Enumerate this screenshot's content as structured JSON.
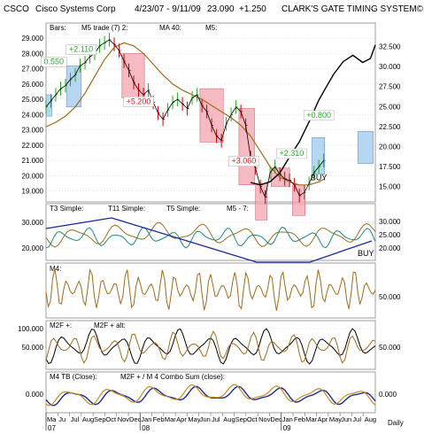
{
  "header": {
    "symbol": "CSCO",
    "company": "Cisco Systems Corp",
    "range": "4/23/07 - 9/11/09",
    "last": "23.090",
    "change": "+1.250",
    "system": "CLARK'S GATE TIMING SYSTEM©"
  },
  "colors": {
    "price": "#000000",
    "up_bar": "#22aa22",
    "down_bar": "#cc0000",
    "ma40": "#a06a1a",
    "buy_zone": "#9ec8ec",
    "sell_zone": "#f2a3ad",
    "teal": "#1a8a7a",
    "blue": "#1a2a9a",
    "arrow_green": "#22aa22",
    "arrow_red": "#cc2222"
  },
  "chart_data": [
    {
      "type": "line",
      "panel": "price",
      "legend": [
        "Bars:",
        "M5 trade (7) 2:",
        "MA 40:",
        "M5:"
      ],
      "left_ticks": [
        "29.000",
        "28.000",
        "27.000",
        "26.000",
        "25.000",
        "24.000",
        "23.000",
        "22.000",
        "21.000",
        "20.000",
        "19.000"
      ],
      "right_ticks": [
        "32.500",
        "30.000",
        "27.500",
        "25.000",
        "22.500",
        "20.000",
        "17.500",
        "15.000"
      ],
      "ylim_left": [
        18.4,
        29.3
      ],
      "ylim_right": [
        13.3,
        34.1
      ],
      "x_months": 28.6,
      "annotations": [
        {
          "text": "+2.110",
          "x": 3.6,
          "y": 28.1,
          "color": "#22aa22"
        },
        {
          "text": "0.550",
          "x": 0.8,
          "y": 27.3,
          "color": "#22aa22"
        },
        {
          "text": "+5.200",
          "x": 9.5,
          "y": 24.7,
          "color": "#cc2222"
        },
        {
          "text": "+3.060",
          "x": 20.3,
          "y": 20.8,
          "color": "#cc2222"
        },
        {
          "text": "+2.310",
          "x": 25.2,
          "y": 21.3,
          "color": "#22aa22"
        },
        {
          "text": "+0.800",
          "x": 28.0,
          "y": 23.8,
          "color": "#22aa22"
        },
        {
          "text": "BUY",
          "x": 28.0,
          "y": 19.7,
          "color": "#000000"
        }
      ],
      "zones": [
        {
          "kind": "buy",
          "x0": 0.0,
          "x1": 0.6,
          "y0": 23.9,
          "y1": 25.3
        },
        {
          "kind": "buy",
          "x0": 2.1,
          "x1": 3.6,
          "y0": 24.5,
          "y1": 27.2
        },
        {
          "kind": "sell",
          "x0": 7.8,
          "x1": 10.1,
          "y0": 25.1,
          "y1": 28.0
        },
        {
          "kind": "sell",
          "x0": 15.8,
          "x1": 18.2,
          "y0": 22.2,
          "y1": 25.7
        },
        {
          "kind": "sell",
          "x0": 19.8,
          "x1": 21.4,
          "y0": 19.4,
          "y1": 24.4
        },
        {
          "kind": "sell",
          "x0": 21.5,
          "x1": 22.7,
          "y0": 17.1,
          "y1": 19.5
        },
        {
          "kind": "sell",
          "x0": 23.1,
          "x1": 25.0,
          "y0": 19.3,
          "y1": 20.5
        },
        {
          "kind": "sell",
          "x0": 25.3,
          "x1": 26.6,
          "y0": 17.4,
          "y1": 19.4
        },
        {
          "kind": "buy",
          "x0": 27.3,
          "x1": 28.6,
          "y0": 20.1,
          "y1": 22.5
        },
        {
          "kind": "buy",
          "x0": 32.0,
          "x1": 33.6,
          "y0": 20.8,
          "y1": 22.9
        }
      ],
      "series": [
        {
          "kind": "bars",
          "values": [
            [
              0,
              24.5
            ],
            [
              0.5,
              24.9
            ],
            [
              1.0,
              25.3
            ],
            [
              1.5,
              25.7
            ],
            [
              2.0,
              25.9
            ],
            [
              2.5,
              26.3
            ],
            [
              3.0,
              26.6
            ],
            [
              3.5,
              27.2
            ],
            [
              4.0,
              27.4
            ],
            [
              4.5,
              27.8
            ],
            [
              5.0,
              28.0
            ],
            [
              5.5,
              28.5
            ],
            [
              6.0,
              28.7
            ],
            [
              6.5,
              28.9
            ],
            [
              7.0,
              28.6
            ],
            [
              7.5,
              28.2
            ],
            [
              8.0,
              27.5
            ],
            [
              8.5,
              26.9
            ],
            [
              9.0,
              26.1
            ],
            [
              9.5,
              25.6
            ],
            [
              10.0,
              25.3
            ],
            [
              10.5,
              25.6
            ],
            [
              11.0,
              24.8
            ],
            [
              11.5,
              24.1
            ],
            [
              12.0,
              23.7
            ],
            [
              12.5,
              24.3
            ],
            [
              13.0,
              24.8
            ],
            [
              13.5,
              25.0
            ],
            [
              14.0,
              24.7
            ],
            [
              14.5,
              24.4
            ],
            [
              15.0,
              25.1
            ],
            [
              15.5,
              25.3
            ],
            [
              16.0,
              24.6
            ],
            [
              16.5,
              24.2
            ],
            [
              17.0,
              23.3
            ],
            [
              17.5,
              22.6
            ],
            [
              18.0,
              22.3
            ],
            [
              18.5,
              23.4
            ],
            [
              19.0,
              24.0
            ],
            [
              19.5,
              24.5
            ],
            [
              20.0,
              24.2
            ],
            [
              20.5,
              23.3
            ],
            [
              21.0,
              21.2
            ],
            [
              21.5,
              20.5
            ],
            [
              22.0,
              19.3
            ],
            [
              22.5,
              18.6
            ],
            [
              23.0,
              20.2
            ],
            [
              23.5,
              20.6
            ],
            [
              24.0,
              20.1
            ],
            [
              24.5,
              19.8
            ],
            [
              25.0,
              19.7
            ],
            [
              25.5,
              19.4
            ],
            [
              26.0,
              18.7
            ],
            [
              26.5,
              18.9
            ],
            [
              27.0,
              19.5
            ],
            [
              27.5,
              20.2
            ],
            [
              28.0,
              20.6
            ],
            [
              28.5,
              21.0
            ]
          ]
        },
        {
          "kind": "ma40",
          "values": [
            [
              0,
              23.2
            ],
            [
              1,
              23.5
            ],
            [
              2,
              23.9
            ],
            [
              3,
              24.5
            ],
            [
              4,
              25.4
            ],
            [
              5,
              26.5
            ],
            [
              6,
              27.6
            ],
            [
              7,
              28.4
            ],
            [
              8,
              28.7
            ],
            [
              9,
              28.5
            ],
            [
              10,
              28.0
            ],
            [
              11,
              27.3
            ],
            [
              12,
              26.6
            ],
            [
              13,
              26.0
            ],
            [
              14,
              25.6
            ],
            [
              15,
              25.3
            ],
            [
              16,
              25.0
            ],
            [
              17,
              24.6
            ],
            [
              18,
              24.2
            ],
            [
              19,
              23.8
            ],
            [
              20,
              23.3
            ],
            [
              21,
              22.6
            ],
            [
              22,
              21.6
            ],
            [
              23,
              20.6
            ],
            [
              24,
              19.9
            ],
            [
              25,
              19.6
            ],
            [
              26,
              19.4
            ],
            [
              27,
              19.4
            ],
            [
              28,
              19.6
            ],
            [
              28.6,
              19.8
            ]
          ]
        },
        {
          "kind": "m5",
          "values": [
            [
              21.0,
              15.5
            ],
            [
              22.0,
              15.2
            ],
            [
              23.0,
              15.6
            ],
            [
              24.0,
              16.7
            ],
            [
              25.0,
              18.7
            ],
            [
              26.0,
              20.6
            ],
            [
              27.0,
              23.1
            ],
            [
              28.0,
              25.8
            ],
            [
              28.6,
              27.1
            ],
            [
              29.5,
              29.0
            ],
            [
              30.5,
              30.6
            ],
            [
              31.5,
              31.4
            ],
            [
              32.5,
              30.5
            ],
            [
              33.3,
              31.0
            ],
            [
              33.8,
              32.7
            ]
          ]
        }
      ]
    },
    {
      "type": "line",
      "panel": "t3",
      "legend": [
        "T3 Simple:",
        "T11 Simple:",
        "T5 Simple:",
        "M5 - 7:"
      ],
      "left_ticks": [
        "30.000",
        "20.000"
      ],
      "right_ticks": [
        "30.000",
        "25.000",
        "20.000"
      ],
      "label": "BUY"
    },
    {
      "type": "line",
      "panel": "m4",
      "legend": [
        "M4:"
      ],
      "right_ticks": [
        "50.000"
      ]
    },
    {
      "type": "line",
      "panel": "m2f",
      "legend": [
        "M2F +:",
        "M2F + alt:"
      ],
      "left_ticks": [
        "100.000",
        "50.000"
      ],
      "right_ticks": [
        "50.000"
      ]
    },
    {
      "type": "line",
      "panel": "tb",
      "legend": [
        "M4 TB (Close):",
        "M2F + / M 4 Combo Sum (close):"
      ],
      "left_ticks": [
        "0.000"
      ],
      "right_ticks": [
        "0.000"
      ]
    }
  ],
  "xaxis": {
    "months": [
      "Ma",
      "Ju",
      "Jul",
      "Aug",
      "Sep",
      "Oct",
      "Nov",
      "Dec",
      "Jan",
      "Feb",
      "Mar",
      "Apr",
      "May",
      "Jun",
      "Jul",
      "Aug",
      "Sep",
      "Oct",
      "Nov",
      "Dec",
      "Jan",
      "Feb",
      "Mar",
      "Apr",
      "May",
      "Jun",
      "Jul",
      "Aug"
    ],
    "years": [
      "07",
      "08",
      "09"
    ],
    "period": "Daily"
  }
}
